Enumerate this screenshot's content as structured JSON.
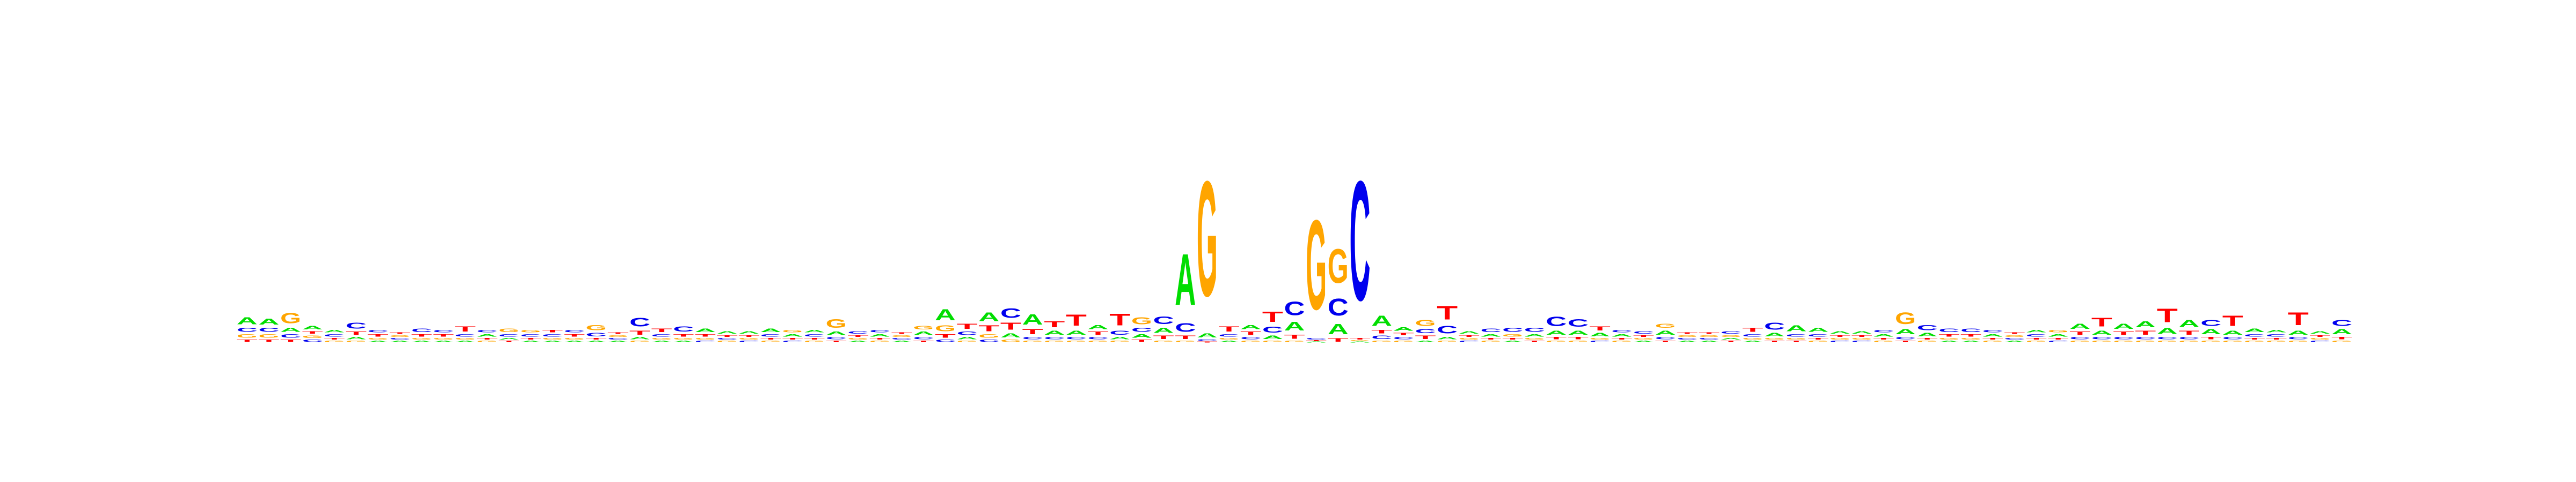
{
  "chart_data": {
    "type": "sequence_logo",
    "alphabet": [
      "A",
      "C",
      "G",
      "T"
    ],
    "colors": {
      "A": "#00dd00",
      "C": "#0000ee",
      "G": "#ffa500",
      "T": "#ff0000"
    },
    "ylim": [
      0,
      2
    ],
    "unit": "bits",
    "positions": [
      {
        "A": 0.08,
        "C": 0.05,
        "G": 0.04,
        "T": 0.03
      },
      {
        "A": 0.07,
        "C": 0.05,
        "G": 0.04,
        "T": 0.03
      },
      {
        "G": 0.12,
        "A": 0.05,
        "C": 0.04,
        "T": 0.03
      },
      {
        "A": 0.04,
        "C": 0.03,
        "G": 0.03,
        "T": 0.03
      },
      {
        "C": 0.03,
        "A": 0.03,
        "G": 0.02,
        "T": 0.02
      },
      {
        "C": 0.07,
        "T": 0.04,
        "A": 0.03,
        "G": 0.02
      },
      {
        "T": 0.03,
        "C": 0.03,
        "A": 0.02,
        "G": 0.02
      },
      {
        "A": 0.02,
        "C": 0.02,
        "G": 0.02,
        "T": 0.02
      },
      {
        "C": 0.04,
        "T": 0.03,
        "A": 0.02,
        "G": 0.02
      },
      {
        "T": 0.03,
        "C": 0.03,
        "A": 0.02,
        "G": 0.02
      },
      {
        "T": 0.06,
        "C": 0.03,
        "A": 0.02,
        "G": 0.02
      },
      {
        "A": 0.03,
        "C": 0.03,
        "G": 0.02,
        "T": 0.02
      },
      {
        "G": 0.04,
        "C": 0.03,
        "T": 0.02,
        "A": 0.02
      },
      {
        "C": 0.03,
        "G": 0.03,
        "A": 0.02,
        "T": 0.02
      },
      {
        "C": 0.03,
        "T": 0.03,
        "A": 0.02,
        "G": 0.02
      },
      {
        "T": 0.03,
        "C": 0.03,
        "A": 0.02,
        "G": 0.02
      },
      {
        "C": 0.04,
        "G": 0.06,
        "A": 0.02,
        "T": 0.02
      },
      {
        "A": 0.02,
        "C": 0.02,
        "G": 0.02,
        "T": 0.02
      },
      {
        "C": 0.1,
        "T": 0.05,
        "A": 0.03,
        "G": 0.02
      },
      {
        "T": 0.04,
        "C": 0.03,
        "A": 0.02,
        "G": 0.02
      },
      {
        "C": 0.06,
        "T": 0.03,
        "A": 0.02,
        "G": 0.02
      },
      {
        "A": 0.04,
        "T": 0.03,
        "C": 0.02,
        "G": 0.02
      },
      {
        "A": 0.03,
        "G": 0.02,
        "C": 0.02,
        "T": 0.02
      },
      {
        "A": 0.03,
        "C": 0.02,
        "G": 0.02,
        "T": 0.02
      },
      {
        "A": 0.04,
        "C": 0.03,
        "G": 0.02,
        "T": 0.02
      },
      {
        "A": 0.03,
        "G": 0.03,
        "C": 0.02,
        "T": 0.02
      },
      {
        "C": 0.03,
        "A": 0.03,
        "G": 0.02,
        "T": 0.02
      },
      {
        "G": 0.1,
        "A": 0.04,
        "C": 0.03,
        "T": 0.02
      },
      {
        "C": 0.03,
        "A": 0.02,
        "G": 0.02,
        "T": 0.02
      },
      {
        "A": 0.03,
        "C": 0.03,
        "G": 0.02,
        "T": 0.02
      },
      {
        "A": 0.02,
        "C": 0.02,
        "G": 0.02,
        "T": 0.02
      },
      {
        "A": 0.04,
        "G": 0.04,
        "C": 0.03,
        "T": 0.02
      },
      {
        "A": 0.13,
        "G": 0.07,
        "T": 0.04,
        "C": 0.03
      },
      {
        "T": 0.06,
        "C": 0.04,
        "A": 0.03,
        "G": 0.02
      },
      {
        "A": 0.1,
        "T": 0.07,
        "G": 0.04,
        "C": 0.03
      },
      {
        "C": 0.11,
        "T": 0.08,
        "A": 0.05,
        "G": 0.03
      },
      {
        "A": 0.12,
        "T": 0.06,
        "C": 0.03,
        "G": 0.02
      },
      {
        "T": 0.07,
        "A": 0.05,
        "C": 0.03,
        "G": 0.02
      },
      {
        "T": 0.13,
        "A": 0.05,
        "C": 0.03,
        "G": 0.02
      },
      {
        "A": 0.05,
        "T": 0.04,
        "C": 0.03,
        "G": 0.02
      },
      {
        "T": 0.14,
        "C": 0.05,
        "A": 0.03,
        "G": 0.02
      },
      {
        "G": 0.08,
        "C": 0.05,
        "A": 0.04,
        "T": 0.03
      },
      {
        "C": 0.09,
        "A": 0.06,
        "T": 0.04,
        "G": 0.02
      },
      {
        "A": 0.6,
        "C": 0.1,
        "T": 0.04,
        "G": 0.02
      },
      {
        "G": 1.35,
        "A": 0.05,
        "C": 0.02,
        "T": 0.01
      },
      {
        "T": 0.06,
        "C": 0.03,
        "A": 0.02,
        "G": 0.02
      },
      {
        "A": 0.05,
        "T": 0.04,
        "C": 0.03,
        "G": 0.02
      },
      {
        "T": 0.12,
        "C": 0.07,
        "A": 0.04,
        "G": 0.02
      },
      {
        "C": 0.16,
        "A": 0.1,
        "T": 0.05,
        "G": 0.02
      },
      {
        "G": 1.05,
        "C": 0.02,
        "A": 0.01,
        "T": 0.01
      },
      {
        "G": 0.4,
        "C": 0.2,
        "A": 0.12,
        "T": 0.04
      },
      {
        "C": 1.4,
        "T": 0.02,
        "A": 0.01,
        "G": 0.01
      },
      {
        "A": 0.12,
        "C": 0.04,
        "T": 0.04,
        "G": 0.02
      },
      {
        "A": 0.04,
        "C": 0.03,
        "T": 0.03,
        "G": 0.02
      },
      {
        "G": 0.07,
        "C": 0.05,
        "T": 0.04,
        "A": 0.02
      },
      {
        "T": 0.16,
        "C": 0.09,
        "A": 0.03,
        "G": 0.02
      },
      {
        "A": 0.03,
        "C": 0.02,
        "G": 0.02,
        "T": 0.02
      },
      {
        "C": 0.04,
        "A": 0.03,
        "G": 0.02,
        "T": 0.02
      },
      {
        "C": 0.05,
        "G": 0.03,
        "A": 0.02,
        "T": 0.02
      },
      {
        "C": 0.05,
        "A": 0.03,
        "T": 0.02,
        "G": 0.02
      },
      {
        "C": 0.11,
        "A": 0.05,
        "T": 0.03,
        "G": 0.02
      },
      {
        "C": 0.09,
        "A": 0.05,
        "T": 0.03,
        "G": 0.02
      },
      {
        "T": 0.05,
        "A": 0.04,
        "C": 0.02,
        "G": 0.02
      },
      {
        "A": 0.03,
        "C": 0.03,
        "G": 0.02,
        "T": 0.02
      },
      {
        "C": 0.03,
        "A": 0.02,
        "G": 0.02,
        "T": 0.02
      },
      {
        "A": 0.05,
        "G": 0.05,
        "C": 0.03,
        "T": 0.02
      },
      {
        "A": 0.02,
        "C": 0.02,
        "G": 0.02,
        "T": 0.02
      },
      {
        "A": 0.02,
        "C": 0.02,
        "G": 0.02,
        "T": 0.02
      },
      {
        "C": 0.03,
        "T": 0.02,
        "A": 0.02,
        "G": 0.02
      },
      {
        "T": 0.05,
        "C": 0.03,
        "A": 0.02,
        "G": 0.02
      },
      {
        "C": 0.08,
        "A": 0.04,
        "T": 0.02,
        "G": 0.02
      },
      {
        "A": 0.07,
        "C": 0.03,
        "T": 0.02,
        "G": 0.02
      },
      {
        "A": 0.05,
        "C": 0.03,
        "G": 0.02,
        "T": 0.02
      },
      {
        "A": 0.03,
        "C": 0.02,
        "G": 0.02,
        "T": 0.02
      },
      {
        "A": 0.03,
        "C": 0.02,
        "G": 0.02,
        "T": 0.02
      },
      {
        "A": 0.03,
        "C": 0.03,
        "G": 0.02,
        "T": 0.02
      },
      {
        "G": 0.14,
        "A": 0.06,
        "C": 0.03,
        "T": 0.02
      },
      {
        "C": 0.06,
        "A": 0.04,
        "G": 0.02,
        "T": 0.02
      },
      {
        "C": 0.04,
        "T": 0.03,
        "A": 0.02,
        "G": 0.02
      },
      {
        "C": 0.04,
        "T": 0.03,
        "A": 0.02,
        "G": 0.02
      },
      {
        "A": 0.03,
        "C": 0.03,
        "G": 0.02,
        "T": 0.02
      },
      {
        "A": 0.02,
        "C": 0.02,
        "G": 0.02,
        "T": 0.02
      },
      {
        "C": 0.03,
        "A": 0.03,
        "G": 0.02,
        "T": 0.02
      },
      {
        "A": 0.03,
        "G": 0.03,
        "C": 0.02,
        "T": 0.02
      },
      {
        "A": 0.06,
        "T": 0.04,
        "C": 0.03,
        "G": 0.02
      },
      {
        "T": 0.1,
        "A": 0.05,
        "C": 0.03,
        "G": 0.02
      },
      {
        "A": 0.06,
        "T": 0.04,
        "C": 0.03,
        "G": 0.02
      },
      {
        "A": 0.07,
        "T": 0.05,
        "C": 0.03,
        "G": 0.02
      },
      {
        "T": 0.16,
        "A": 0.07,
        "C": 0.03,
        "G": 0.02
      },
      {
        "A": 0.08,
        "T": 0.05,
        "C": 0.03,
        "G": 0.02
      },
      {
        "C": 0.07,
        "A": 0.06,
        "T": 0.03,
        "G": 0.02
      },
      {
        "T": 0.12,
        "A": 0.05,
        "C": 0.03,
        "G": 0.02
      },
      {
        "A": 0.04,
        "C": 0.03,
        "G": 0.02,
        "T": 0.02
      },
      {
        "C": 0.03,
        "A": 0.03,
        "G": 0.02,
        "T": 0.02
      },
      {
        "T": 0.15,
        "A": 0.05,
        "C": 0.03,
        "G": 0.02
      },
      {
        "A": 0.03,
        "C": 0.02,
        "G": 0.02,
        "T": 0.02
      },
      {
        "C": 0.07,
        "A": 0.06,
        "T": 0.03,
        "G": 0.02
      }
    ]
  }
}
